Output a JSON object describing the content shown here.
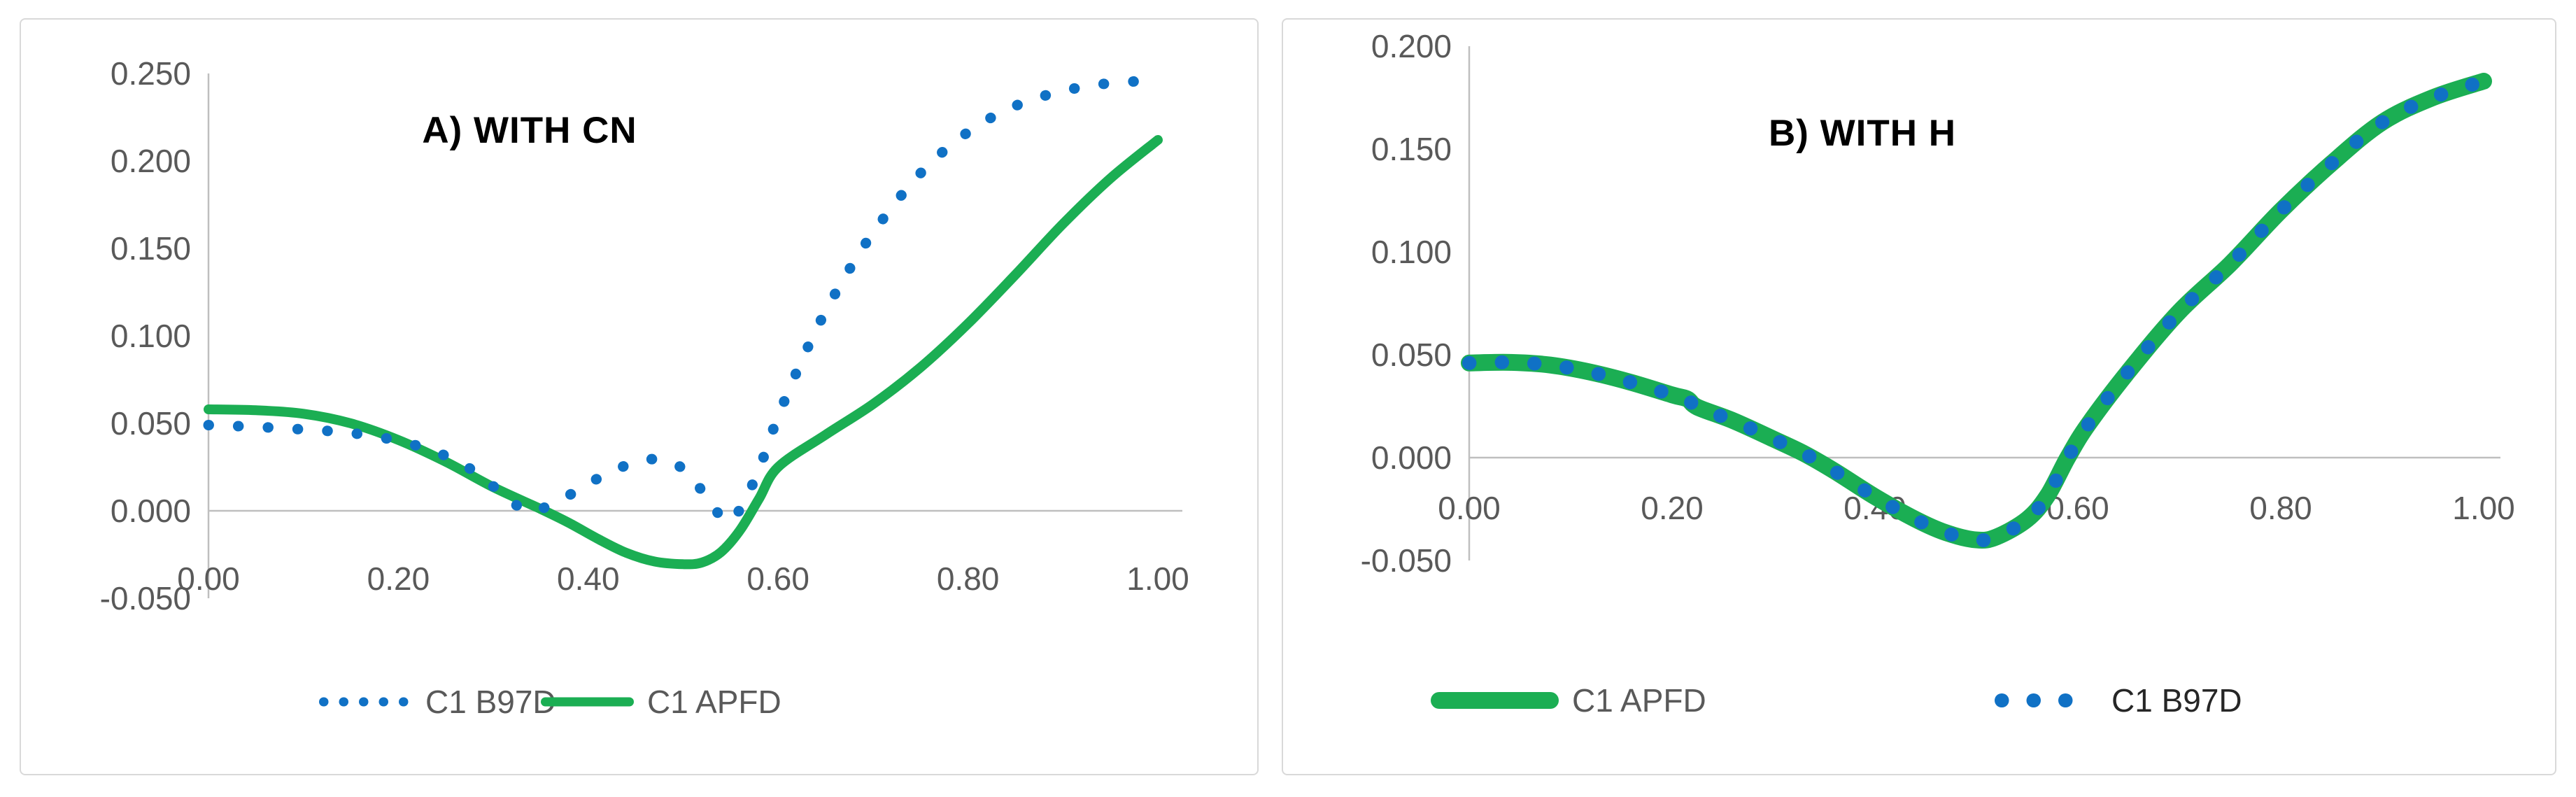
{
  "figure": {
    "background": "#ffffff",
    "panel_border_color": "#D9D9D9",
    "axis_color": "#BFBFBF",
    "tick_text_color": "#595959",
    "title_color": "#000000"
  },
  "chart_data": [
    {
      "type": "line",
      "title": "A) WITH CN",
      "xlabel": "",
      "ylabel": "",
      "xlim": [
        0.0,
        1.0
      ],
      "ylim": [
        -0.05,
        0.25
      ],
      "grid": false,
      "legend_position": "bottom",
      "x_tick_labels": [
        "0.00",
        "0.20",
        "0.40",
        "0.60",
        "0.80",
        "1.00"
      ],
      "y_tick_labels": [
        "0.250",
        "0.200",
        "0.150",
        "0.100",
        "0.050",
        "0.000",
        "-0.050"
      ],
      "series": [
        {
          "name": "C1 B97D",
          "color": "#1071C5",
          "label_color": "#595959",
          "line_style": "dotted",
          "points": [
            [
              0.0,
              0.049
            ],
            [
              0.05,
              0.048
            ],
            [
              0.1,
              0.0465
            ],
            [
              0.15,
              0.0445
            ],
            [
              0.2,
              0.04
            ],
            [
              0.24,
              0.0335
            ],
            [
              0.27,
              0.026
            ],
            [
              0.3,
              0.014
            ],
            [
              0.32,
              0.005
            ],
            [
              0.335,
              0.0
            ],
            [
              0.35,
              0.001
            ],
            [
              0.38,
              0.009
            ],
            [
              0.41,
              0.0185
            ],
            [
              0.44,
              0.026
            ],
            [
              0.465,
              0.0295
            ],
            [
              0.49,
              0.0275
            ],
            [
              0.51,
              0.018
            ],
            [
              0.53,
              0.004
            ],
            [
              0.545,
              -0.006
            ],
            [
              0.56,
              0.001
            ],
            [
              0.58,
              0.024
            ],
            [
              0.6,
              0.054
            ],
            [
              0.63,
              0.092
            ],
            [
              0.66,
              0.124
            ],
            [
              0.7,
              0.159
            ],
            [
              0.75,
              0.193
            ],
            [
              0.8,
              0.2165
            ],
            [
              0.85,
              0.2315
            ],
            [
              0.9,
              0.24
            ],
            [
              0.95,
              0.2445
            ],
            [
              1.0,
              0.246
            ]
          ]
        },
        {
          "name": "C1 APFD",
          "color": "#1BAE53",
          "label_color": "#595959",
          "line_style": "solid",
          "points": [
            [
              0.0,
              0.058
            ],
            [
              0.05,
              0.0575
            ],
            [
              0.1,
              0.0555
            ],
            [
              0.15,
              0.05
            ],
            [
              0.2,
              0.0405
            ],
            [
              0.25,
              0.028
            ],
            [
              0.3,
              0.0135
            ],
            [
              0.35,
              0.001
            ],
            [
              0.38,
              -0.007
            ],
            [
              0.41,
              -0.016
            ],
            [
              0.44,
              -0.024
            ],
            [
              0.47,
              -0.029
            ],
            [
              0.5,
              -0.0305
            ],
            [
              0.52,
              -0.0295
            ],
            [
              0.54,
              -0.0235
            ],
            [
              0.56,
              -0.011
            ],
            [
              0.58,
              0.007
            ],
            [
              0.6,
              0.025
            ],
            [
              0.65,
              0.0435
            ],
            [
              0.7,
              0.061
            ],
            [
              0.75,
              0.082
            ],
            [
              0.8,
              0.107
            ],
            [
              0.85,
              0.135
            ],
            [
              0.9,
              0.164
            ],
            [
              0.95,
              0.19
            ],
            [
              1.0,
              0.212
            ]
          ]
        }
      ]
    },
    {
      "type": "line",
      "title": "B) WITH H",
      "xlabel": "",
      "ylabel": "",
      "xlim": [
        0.0,
        1.0
      ],
      "ylim": [
        -0.05,
        0.2
      ],
      "grid": false,
      "legend_position": "bottom",
      "x_tick_labels": [
        "0.00",
        "0.20",
        "0.40",
        "0.60",
        "0.80",
        "1.00"
      ],
      "y_tick_labels": [
        "0.200",
        "0.150",
        "0.100",
        "0.050",
        "0.000",
        "-0.050"
      ],
      "series": [
        {
          "name": "C1 APFD",
          "color": "#1BAE53",
          "label_color": "#595959",
          "line_style": "solid",
          "points": [
            [
              0.0,
              0.046
            ],
            [
              0.04,
              0.0463
            ],
            [
              0.08,
              0.045
            ],
            [
              0.12,
              0.0415
            ],
            [
              0.16,
              0.0365
            ],
            [
              0.2,
              0.0305
            ],
            [
              0.215,
              0.0285
            ],
            [
              0.225,
              0.0245
            ],
            [
              0.26,
              0.018
            ],
            [
              0.3,
              0.009
            ],
            [
              0.33,
              0.002
            ],
            [
              0.36,
              -0.0065
            ],
            [
              0.4,
              -0.019
            ],
            [
              0.44,
              -0.03
            ],
            [
              0.47,
              -0.0365
            ],
            [
              0.5,
              -0.04
            ],
            [
              0.52,
              -0.0385
            ],
            [
              0.55,
              -0.03
            ],
            [
              0.57,
              -0.0185
            ],
            [
              0.59,
              0.0
            ],
            [
              0.61,
              0.016
            ],
            [
              0.65,
              0.042
            ],
            [
              0.7,
              0.071
            ],
            [
              0.75,
              0.094
            ],
            [
              0.8,
              0.12
            ],
            [
              0.85,
              0.143
            ],
            [
              0.9,
              0.163
            ],
            [
              0.95,
              0.175
            ],
            [
              1.0,
              0.183
            ]
          ]
        },
        {
          "name": "C1 B97D",
          "color": "#1071C5",
          "label_color": "#262626",
          "line_style": "dotted",
          "points": [
            [
              0.0,
              0.046
            ],
            [
              0.04,
              0.0463
            ],
            [
              0.08,
              0.045
            ],
            [
              0.12,
              0.0415
            ],
            [
              0.16,
              0.0365
            ],
            [
              0.2,
              0.0305
            ],
            [
              0.215,
              0.0285
            ],
            [
              0.225,
              0.0245
            ],
            [
              0.26,
              0.018
            ],
            [
              0.3,
              0.009
            ],
            [
              0.33,
              0.002
            ],
            [
              0.36,
              -0.0065
            ],
            [
              0.4,
              -0.019
            ],
            [
              0.44,
              -0.03
            ],
            [
              0.47,
              -0.0365
            ],
            [
              0.5,
              -0.04
            ],
            [
              0.52,
              -0.0385
            ],
            [
              0.55,
              -0.03
            ],
            [
              0.57,
              -0.0185
            ],
            [
              0.59,
              0.0
            ],
            [
              0.61,
              0.016
            ],
            [
              0.65,
              0.042
            ],
            [
              0.7,
              0.071
            ],
            [
              0.75,
              0.094
            ],
            [
              0.8,
              0.12
            ],
            [
              0.85,
              0.143
            ],
            [
              0.9,
              0.163
            ],
            [
              0.95,
              0.175
            ],
            [
              1.0,
              0.183
            ]
          ]
        }
      ]
    }
  ]
}
